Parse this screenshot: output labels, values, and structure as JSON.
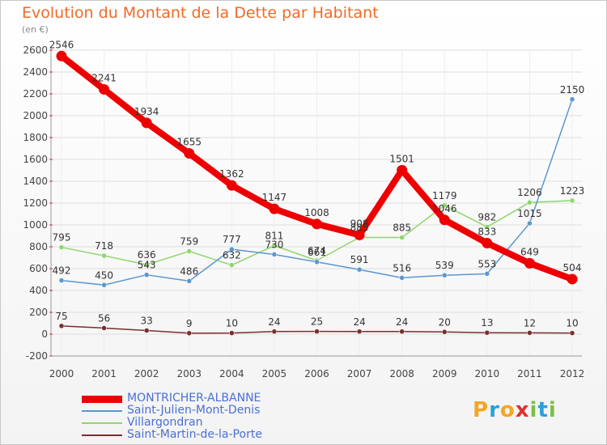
{
  "title": "Evolution du Montant de la Dette par Habitant",
  "unit": "(en €)",
  "logo": {
    "letters": [
      "P",
      "r",
      "o",
      "x",
      "i",
      "t",
      "i"
    ],
    "colors": [
      "#f5a623",
      "#2aa0d8",
      "#f5a623",
      "#e03030",
      "#7ac143",
      "#2aa0d8",
      "#7ac143"
    ]
  },
  "chart_data": {
    "type": "line",
    "x": [
      "2000",
      "2001",
      "2002",
      "2003",
      "2004",
      "2005",
      "2006",
      "2007",
      "2008",
      "2009",
      "2010",
      "2011",
      "2012"
    ],
    "ylim": [
      -200,
      2600
    ],
    "yticks": [
      -200,
      0,
      200,
      400,
      600,
      800,
      1000,
      1200,
      1400,
      1600,
      1800,
      2000,
      2200,
      2400,
      2600
    ],
    "grid": true,
    "legend_position": "bottom-left",
    "series": [
      {
        "name": "MONTRICHER-ALBANNE",
        "color": "#ee0000",
        "width": 8,
        "marker": 6.5,
        "values": [
          2546,
          2241,
          1934,
          1655,
          1362,
          1147,
          1008,
          908,
          1501,
          1046,
          833,
          649,
          504
        ],
        "labels": [
          "2546",
          "2241",
          "1934",
          "1655",
          "1362",
          "1147",
          "1008",
          "908",
          "1501",
          "1046",
          "833",
          "649",
          "504"
        ]
      },
      {
        "name": "Saint-Julien-Mont-Denis",
        "color": "#5b97d0",
        "width": 1.5,
        "marker": 3,
        "values": [
          492,
          450,
          543,
          486,
          777,
          730,
          661,
          591,
          516,
          539,
          553,
          1015,
          2150
        ],
        "labels": [
          "492",
          "450",
          "543",
          "486",
          "777",
          "730",
          "661",
          "591",
          "516",
          "539",
          "553",
          "1015",
          "2150"
        ]
      },
      {
        "name": "Villargondran",
        "color": "#8ed66b",
        "width": 1.5,
        "marker": 3,
        "values": [
          795,
          718,
          636,
          759,
          632,
          811,
          674,
          885,
          885,
          1179,
          982,
          1206,
          1223
        ],
        "labels": [
          "795",
          "718",
          "636",
          "759",
          "632",
          "811",
          "674",
          "885",
          "885",
          "1179",
          "982",
          "1206",
          "1223"
        ]
      },
      {
        "name": "Saint-Martin-de-la-Porte",
        "color": "#7a2e2e",
        "width": 1.5,
        "marker": 3,
        "values": [
          75,
          56,
          33,
          9,
          10,
          24,
          25,
          24,
          24,
          20,
          13,
          12,
          10
        ],
        "labels": [
          "75",
          "56",
          "33",
          "9",
          "10",
          "24",
          "25",
          "24",
          "24",
          "20",
          "13",
          "12",
          "10"
        ]
      }
    ]
  }
}
